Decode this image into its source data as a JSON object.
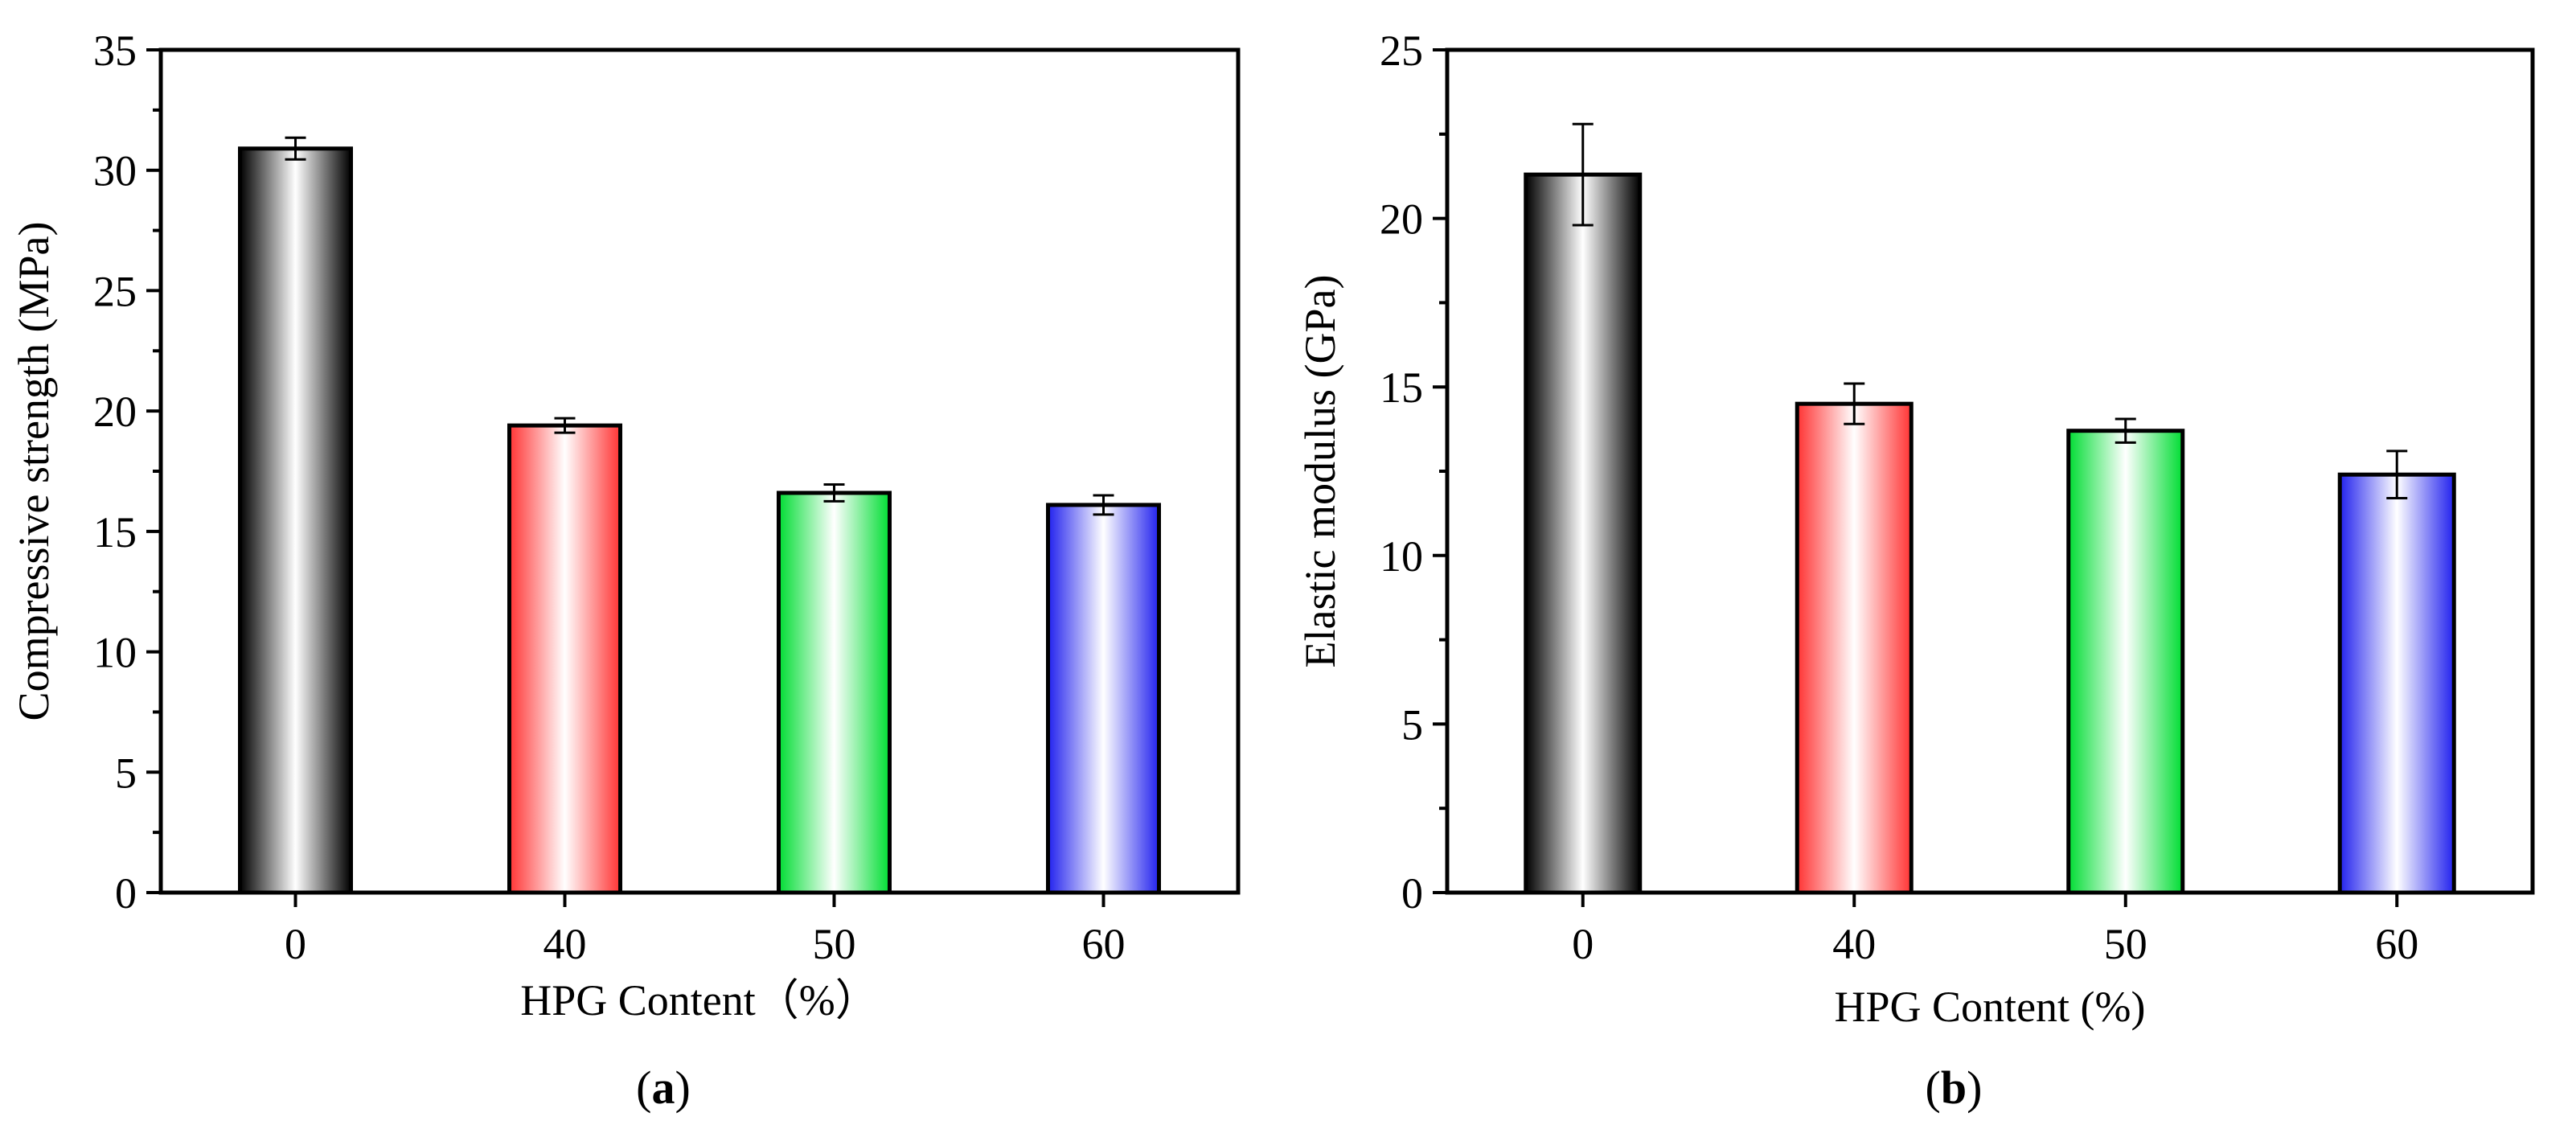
{
  "chart_data": [
    {
      "type": "bar",
      "panel_label": "a",
      "categories": [
        "0",
        "40",
        "50",
        "60"
      ],
      "values": [
        30.9,
        19.4,
        16.6,
        16.1
      ],
      "errors": [
        0.45,
        0.3,
        0.35,
        0.4
      ],
      "bar_colors": [
        "#000000",
        "#ff3333",
        "#00dd33",
        "#2222ee"
      ],
      "xlabel": "HPG Content（%）",
      "ylabel": "Compressive strength (MPa)",
      "ylim": [
        0,
        35
      ],
      "yticks": [
        0,
        5,
        10,
        15,
        20,
        25,
        30,
        35
      ],
      "minor_ticks": true,
      "grid": false
    },
    {
      "type": "bar",
      "panel_label": "b",
      "categories": [
        "0",
        "40",
        "50",
        "60"
      ],
      "values": [
        21.3,
        14.5,
        13.7,
        12.4
      ],
      "errors": [
        1.5,
        0.6,
        0.35,
        0.7
      ],
      "bar_colors": [
        "#000000",
        "#ff3333",
        "#00dd33",
        "#2222ee"
      ],
      "xlabel": "HPG Content (%)",
      "ylabel": "Elastic modulus (GPa)",
      "ylim": [
        0,
        25
      ],
      "yticks": [
        0,
        5,
        10,
        15,
        20,
        25
      ],
      "minor_ticks": true,
      "grid": false
    }
  ]
}
